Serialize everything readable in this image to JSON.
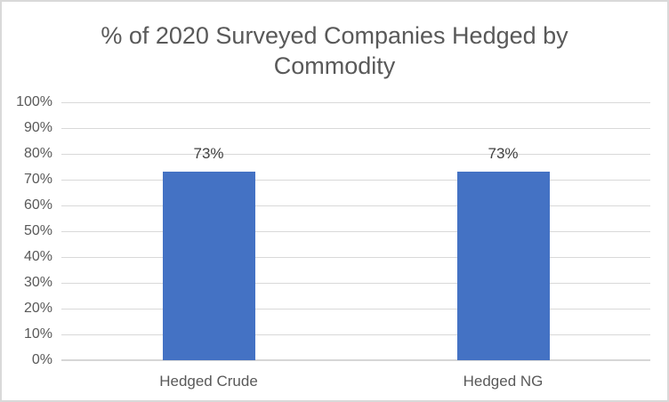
{
  "window": {
    "background": "#FFFFFF",
    "border_color": "#D9D9D9"
  },
  "chart_data": {
    "type": "bar",
    "title": "% of 2020 Surveyed Companies Hedged by Commodity",
    "xlabel": "",
    "ylabel": "",
    "categories": [
      "Hedged Crude",
      "Hedged NG"
    ],
    "values": [
      73,
      73
    ],
    "data_labels": [
      "73%",
      "73%"
    ],
    "ylim": [
      0,
      100
    ],
    "ytick_step": 10,
    "ytick_labels": [
      "0%",
      "10%",
      "20%",
      "30%",
      "40%",
      "50%",
      "60%",
      "70%",
      "80%",
      "90%",
      "100%"
    ],
    "grid": true,
    "legend_position": "none",
    "colors": {
      "bar": "#4472C4",
      "title_text": "#595959",
      "axis_text": "#595959",
      "data_label_text": "#404040",
      "gridline": "#D9D9D9",
      "axis_line": "#D6D6D6"
    }
  }
}
